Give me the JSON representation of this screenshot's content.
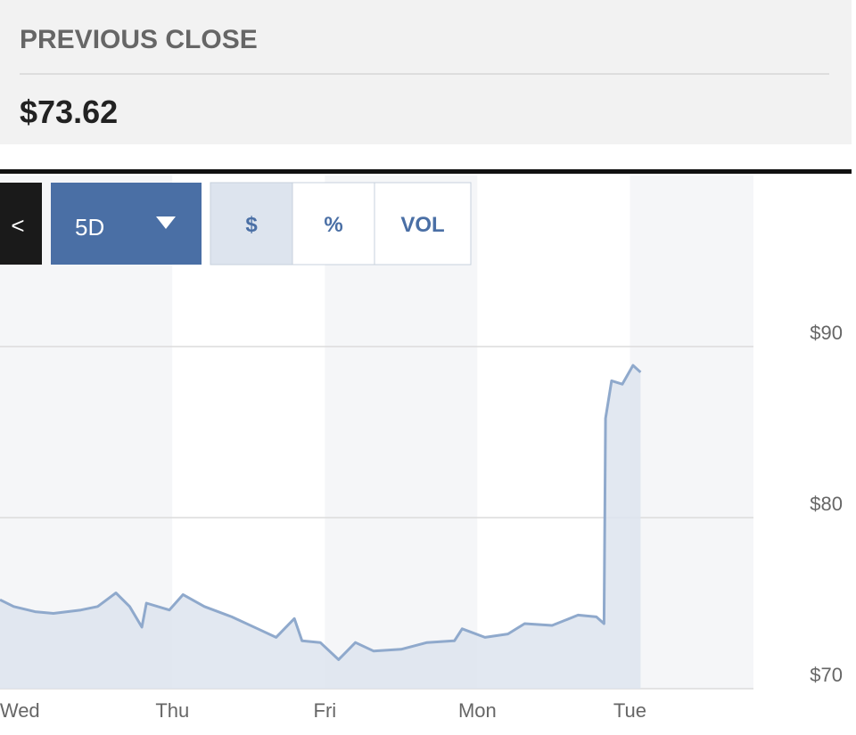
{
  "header": {
    "label": "PREVIOUS CLOSE",
    "value": "$73.62"
  },
  "controls": {
    "back": "<",
    "range": "5D",
    "modes": [
      "$",
      "%",
      "VOL"
    ]
  },
  "chart_data": {
    "type": "line",
    "x": [
      -0.13,
      -0.04,
      0.1,
      0.22,
      0.4,
      0.51,
      0.63,
      0.72,
      0.8,
      0.83,
      0.98,
      1.07,
      1.21,
      1.39,
      1.56,
      1.68,
      1.8,
      1.85,
      1.97,
      2.09,
      2.2,
      2.32,
      2.5,
      2.67,
      2.85,
      2.9,
      3.05,
      3.2,
      3.31,
      3.49,
      3.66,
      3.78,
      3.83,
      3.84,
      3.88,
      3.95,
      4.02,
      4.07
    ],
    "values": [
      75.2,
      74.8,
      74.5,
      74.4,
      74.6,
      74.8,
      75.6,
      74.8,
      73.6,
      75.0,
      74.6,
      75.5,
      74.8,
      74.2,
      73.5,
      73.0,
      74.1,
      72.8,
      72.7,
      71.7,
      72.7,
      72.2,
      72.3,
      72.7,
      72.8,
      73.5,
      73.0,
      73.2,
      73.8,
      73.7,
      74.3,
      74.2,
      73.8,
      85.8,
      88.0,
      87.8,
      88.9,
      88.5
    ],
    "color": "#8fa9cc",
    "xlim": [
      -0.13,
      4.81
    ],
    "xticks": [
      {
        "value": 0,
        "label": "Wed"
      },
      {
        "value": 1,
        "label": "Thu"
      },
      {
        "value": 2,
        "label": "Fri"
      },
      {
        "value": 3,
        "label": "Mon"
      },
      {
        "value": 4,
        "label": "Tue"
      }
    ],
    "ylim": [
      70,
      100
    ],
    "yticks": [
      {
        "value": 70,
        "label": "$70"
      },
      {
        "value": 80,
        "label": "$80"
      },
      {
        "value": 90,
        "label": "$90"
      }
    ],
    "grid": true
  }
}
